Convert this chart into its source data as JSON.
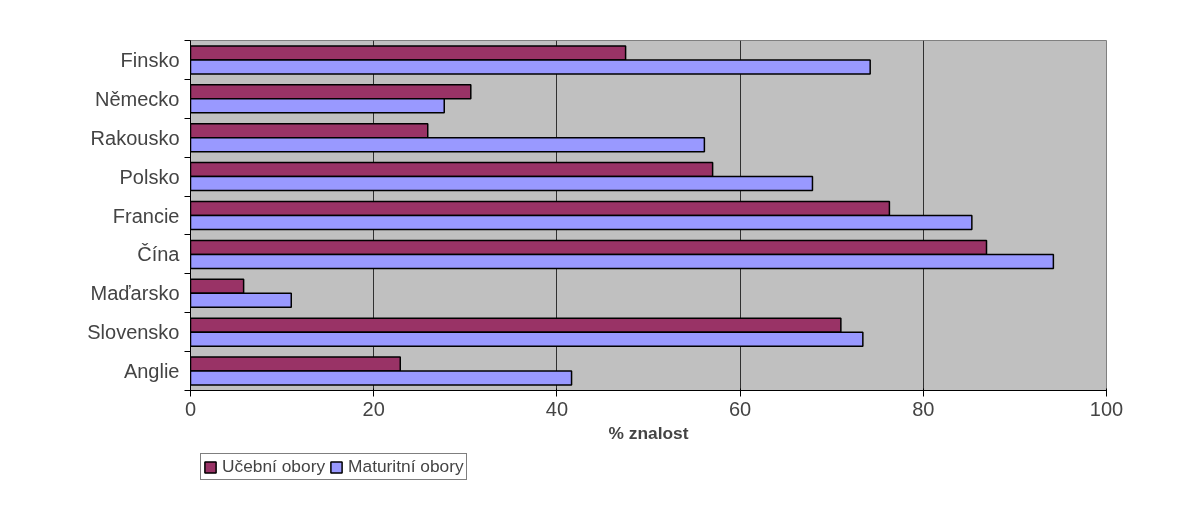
{
  "chart_data": {
    "type": "bar",
    "orientation": "horizontal",
    "xlabel": "% znalost",
    "categories": [
      "Finsko",
      "Německo",
      "Rakousko",
      "Polsko",
      "Francie",
      "Čína",
      "Maďarsko",
      "Slovensko",
      "Anglie"
    ],
    "series": [
      {
        "name": "Učební obory",
        "color": "#993366",
        "values": [
          47.5,
          30.6,
          25.9,
          57,
          76.3,
          86.9,
          5.8,
          71,
          22.9
        ]
      },
      {
        "name": "Maturitní obory",
        "color": "#9999ff",
        "values": [
          74.2,
          27.7,
          56.1,
          67.9,
          85.3,
          94.2,
          11,
          73.4,
          41.6
        ]
      }
    ],
    "xlim": [
      0,
      100
    ],
    "xticks": [
      0,
      20,
      40,
      60,
      80,
      100
    ],
    "grid": "x",
    "legend": "bottom left"
  }
}
